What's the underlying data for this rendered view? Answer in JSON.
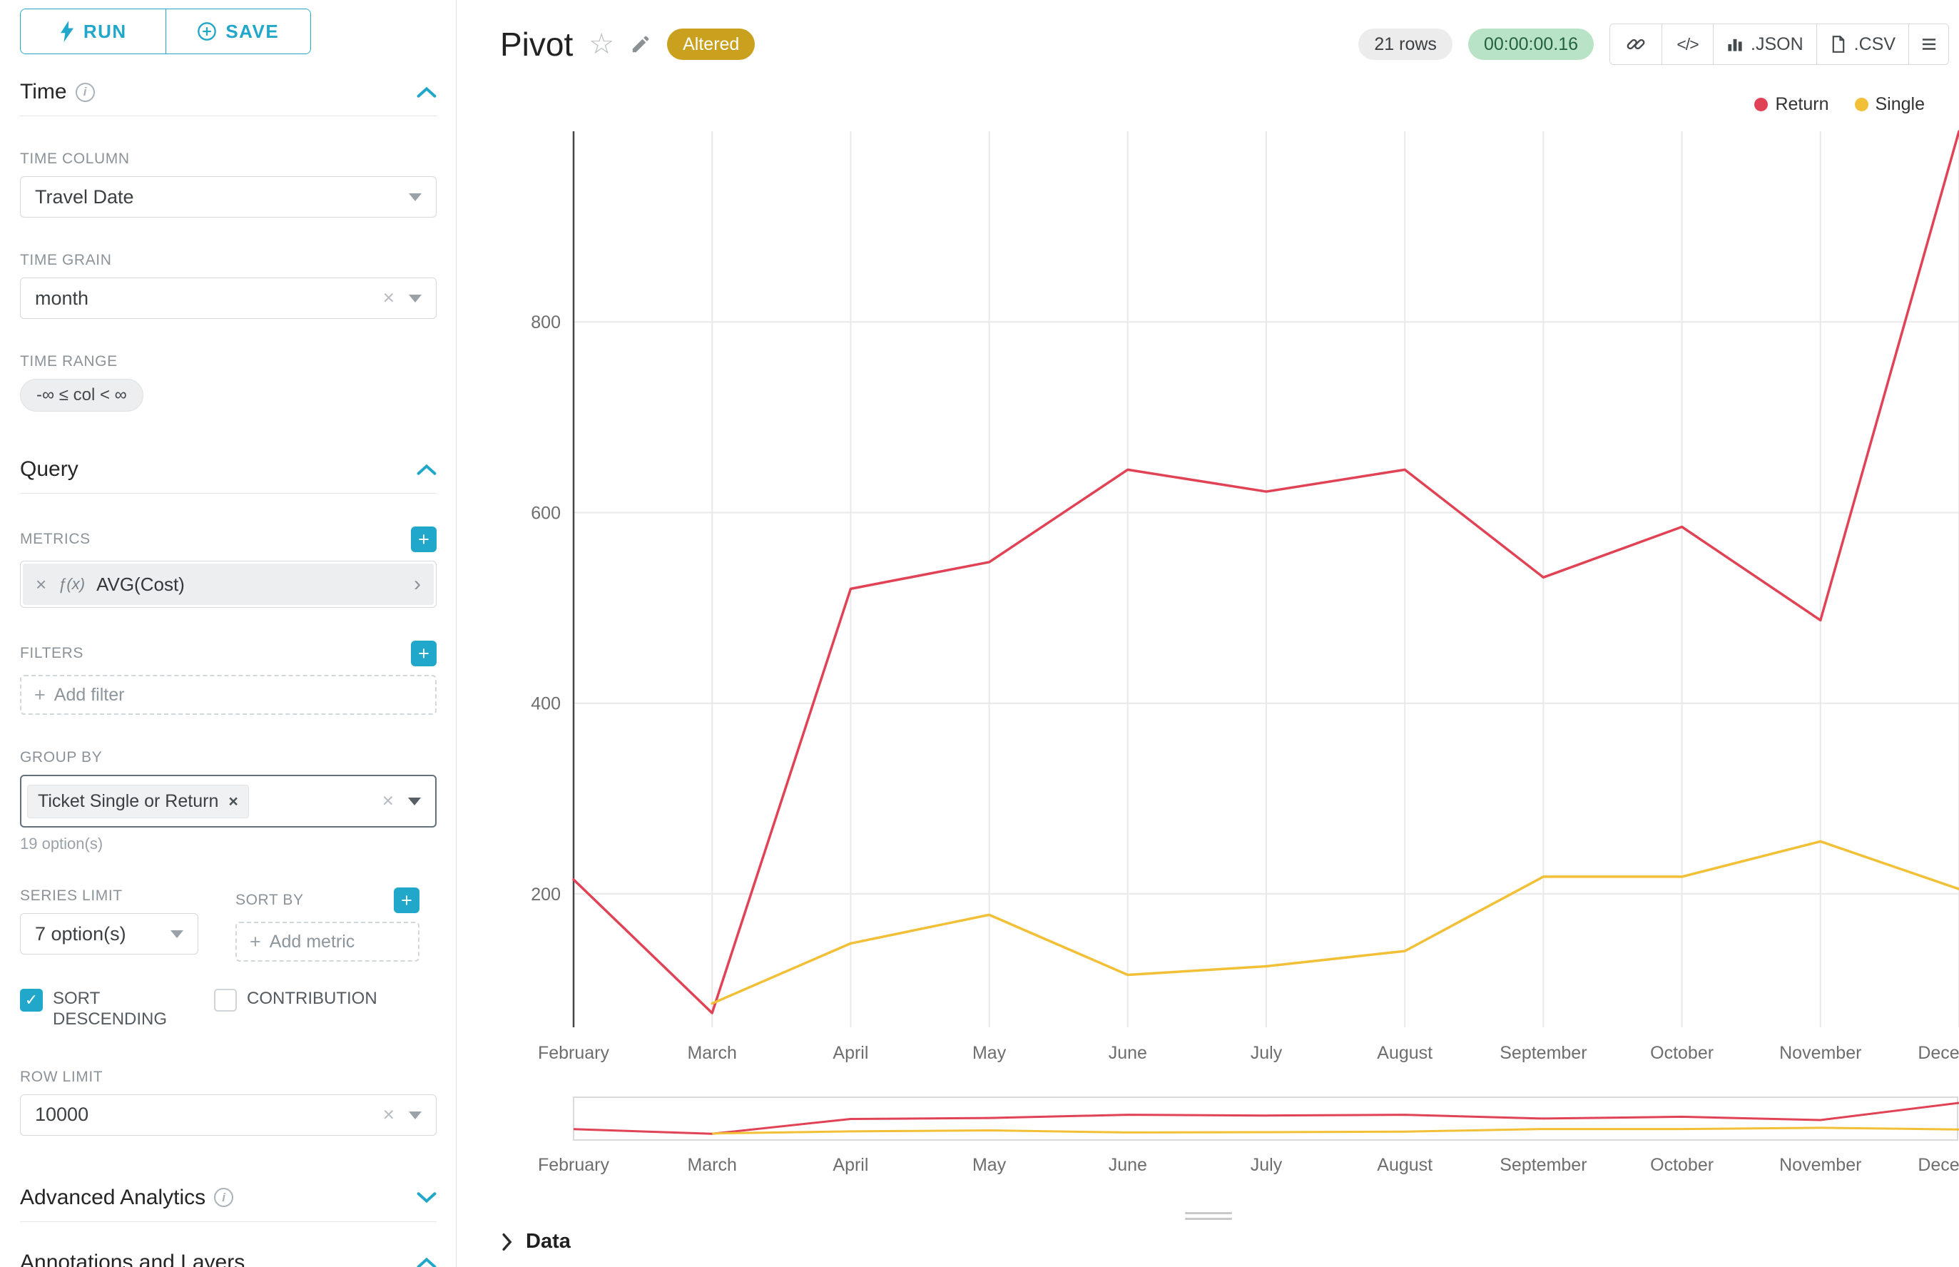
{
  "colors": {
    "accent": "#20a7c9",
    "altered_badge_bg": "#c9a11e",
    "timer_badge_bg": "#b9e3c6",
    "timer_badge_text": "#23623c"
  },
  "sidebar": {
    "run_label": "RUN",
    "save_label": "SAVE",
    "time": {
      "title": "Time",
      "time_column": {
        "label": "TIME COLUMN",
        "value": "Travel Date"
      },
      "time_grain": {
        "label": "TIME GRAIN",
        "value": "month"
      },
      "time_range": {
        "label": "TIME RANGE",
        "value": "-∞ ≤ col < ∞"
      }
    },
    "query": {
      "title": "Query",
      "metrics": {
        "label": "METRICS",
        "fx": "ƒ(x)",
        "value": "AVG(Cost)"
      },
      "filters": {
        "label": "FILTERS",
        "placeholder": "Add filter"
      },
      "group_by": {
        "label": "GROUP BY",
        "tag": "Ticket Single or Return",
        "hint": "19 option(s)"
      },
      "series_limit": {
        "label": "SERIES LIMIT",
        "value": "7 option(s)"
      },
      "sort_by": {
        "label": "SORT BY",
        "placeholder": "Add metric"
      },
      "sort_descending": {
        "label": "SORT DESCENDING",
        "checked": true
      },
      "contribution": {
        "label": "CONTRIBUTION",
        "checked": false
      },
      "row_limit": {
        "label": "ROW LIMIT",
        "value": "10000"
      }
    },
    "advanced_analytics": {
      "title": "Advanced Analytics"
    },
    "annotations": {
      "title": "Annotations and Layers"
    }
  },
  "header": {
    "title": "Pivot",
    "altered_badge": "Altered",
    "rows_badge": "21 rows",
    "timer_badge": "00:00:00.16",
    "json_label": ".JSON",
    "csv_label": ".CSV"
  },
  "chart_data": {
    "type": "line",
    "categories": [
      "February",
      "March",
      "April",
      "May",
      "June",
      "July",
      "August",
      "September",
      "October",
      "November",
      "December"
    ],
    "series": [
      {
        "name": "Return",
        "color": "#e04355",
        "values": [
          215,
          75,
          520,
          548,
          645,
          622,
          645,
          532,
          585,
          487,
          1000
        ]
      },
      {
        "name": "Single",
        "color": "#f2c037",
        "values": [
          null,
          85,
          148,
          178,
          115,
          124,
          140,
          218,
          218,
          255,
          205
        ]
      }
    ],
    "yticks": [
      200,
      400,
      600,
      800
    ],
    "ylim": [
      60,
      1000
    ],
    "xlabel": "",
    "ylabel": "",
    "grid": true,
    "legend_position": "top-right",
    "has_range_selector": true
  },
  "data_panel": {
    "title": "Data"
  }
}
